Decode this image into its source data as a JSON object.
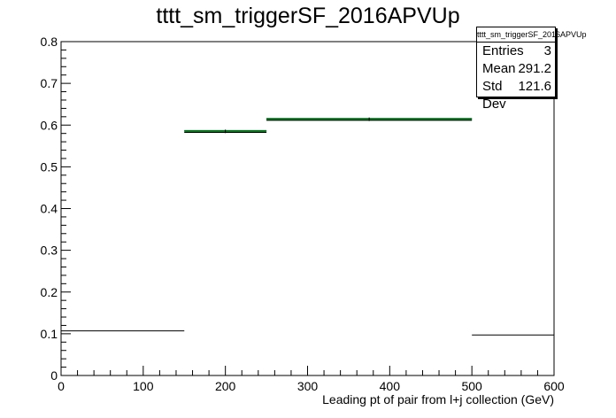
{
  "title": "tttt_sm_triggerSF_2016APVUp",
  "statbox": {
    "name": "tttt_sm_triggerSF_2016APVUp",
    "rows": [
      {
        "label": "Entries",
        "value": "3"
      },
      {
        "label": "Mean",
        "value": "291.2"
      },
      {
        "label": "Std Dev",
        "value": "121.6"
      }
    ]
  },
  "colors": {
    "hist": "#000000",
    "fill_line": "#008000",
    "err_line": "#0000ff"
  },
  "chart_data": {
    "type": "histogram",
    "title": "tttt_sm_triggerSF_2016APVUp",
    "xlabel": "Leading pt of pair from l+j collection (GeV)",
    "ylabel": "",
    "xlim": [
      0,
      600
    ],
    "ylim": [
      0,
      0.8
    ],
    "x_ticks": [
      0,
      100,
      200,
      300,
      400,
      500,
      600
    ],
    "y_ticks": [
      0,
      0.1,
      0.2,
      0.3,
      0.4,
      0.5,
      0.6,
      0.7,
      0.8
    ],
    "bins": [
      {
        "x_low": 0,
        "x_high": 150,
        "value": 0.107,
        "highlight": false
      },
      {
        "x_low": 150,
        "x_high": 250,
        "value": 0.585,
        "highlight": true
      },
      {
        "x_low": 250,
        "x_high": 500,
        "value": 0.614,
        "highlight": true
      },
      {
        "x_low": 500,
        "x_high": 600,
        "value": 0.097,
        "highlight": false
      }
    ]
  }
}
